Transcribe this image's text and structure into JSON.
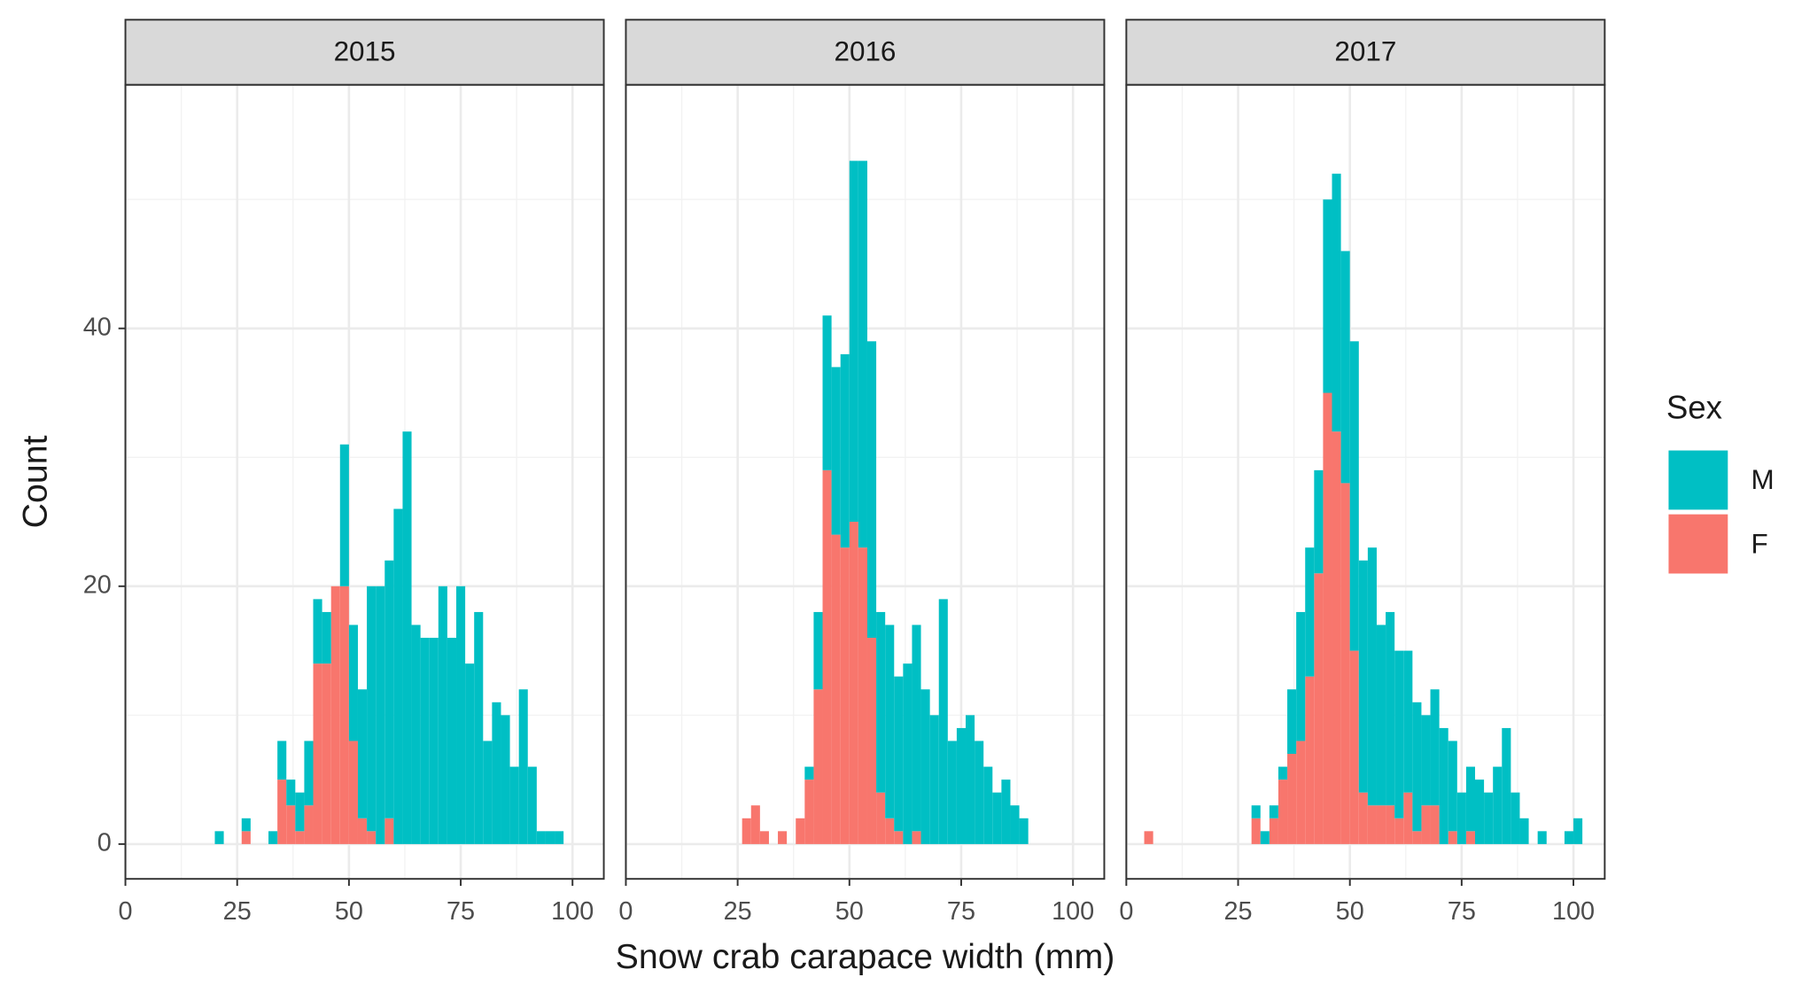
{
  "chart_data": {
    "type": "histogram",
    "x_label": "Snow crab carapace width (mm)",
    "y_label": "Count",
    "legend_title": "Sex",
    "xlim": [
      0,
      107
    ],
    "xticks": [
      0,
      25,
      50,
      75,
      100
    ],
    "ylim": [
      -2.7,
      58.9
    ],
    "yticks": [
      0,
      20,
      40
    ],
    "grid": true,
    "legend_position": "right",
    "panels": [
      {
        "title": "2015",
        "bins": [
          20,
          22,
          24,
          26,
          28,
          30,
          32,
          34,
          36,
          38,
          40,
          42,
          44,
          46,
          48,
          50,
          52,
          54,
          56,
          58,
          60,
          62,
          64,
          66,
          68,
          70,
          72,
          74,
          76,
          78,
          80,
          82,
          84,
          86,
          88,
          90,
          92,
          94,
          96,
          98
        ],
        "series": [
          {
            "name": "M",
            "color": "#00BFC4",
            "values": [
              1,
              0,
              0,
              1,
              0,
              0,
              1,
              3,
              2,
              3,
              5,
              5,
              4,
              0,
              11,
              9,
              10,
              19,
              20,
              20,
              26,
              32,
              17,
              16,
              16,
              20,
              16,
              20,
              14,
              18,
              8,
              11,
              10,
              6,
              12,
              6,
              1,
              1,
              1
            ]
          },
          {
            "name": "F",
            "color": "#F8766D",
            "values": [
              0,
              0,
              0,
              1,
              0,
              0,
              0,
              5,
              3,
              1,
              3,
              14,
              14,
              20,
              20,
              8,
              2,
              1,
              0,
              2,
              0,
              0,
              0,
              0,
              0,
              0,
              0,
              0,
              0,
              0,
              0,
              0,
              0,
              0,
              0,
              0,
              0,
              0,
              0
            ]
          }
        ]
      },
      {
        "title": "2016",
        "bins": [
          26,
          28,
          30,
          32,
          34,
          36,
          38,
          40,
          42,
          44,
          46,
          48,
          50,
          52,
          54,
          56,
          58,
          60,
          62,
          64,
          66,
          68,
          70,
          72,
          74,
          76,
          78,
          80,
          82,
          84,
          86,
          88,
          90
        ],
        "series": [
          {
            "name": "M",
            "color": "#00BFC4",
            "values": [
              0,
              0,
              0,
              0,
              0,
              0,
              0,
              1,
              6,
              12,
              13,
              15,
              28,
              30,
              23,
              14,
              15,
              12,
              14,
              16,
              12,
              10,
              19,
              8,
              9,
              10,
              8,
              6,
              4,
              5,
              3,
              2
            ]
          },
          {
            "name": "F",
            "color": "#F8766D",
            "values": [
              2,
              3,
              1,
              0,
              1,
              0,
              2,
              5,
              12,
              29,
              24,
              23,
              25,
              23,
              16,
              4,
              2,
              1,
              0,
              1,
              0,
              0,
              0,
              0,
              0,
              0,
              0,
              0,
              0,
              0,
              0,
              0
            ]
          }
        ]
      },
      {
        "title": "2017",
        "bins": [
          4,
          6,
          8,
          10,
          12,
          14,
          16,
          18,
          20,
          22,
          24,
          26,
          28,
          30,
          32,
          34,
          36,
          38,
          40,
          42,
          44,
          46,
          48,
          50,
          52,
          54,
          56,
          58,
          60,
          62,
          64,
          66,
          68,
          70,
          72,
          74,
          76,
          78,
          80,
          82,
          84,
          86,
          88,
          90,
          92,
          94,
          96,
          98,
          100,
          102
        ],
        "series": [
          {
            "name": "M",
            "color": "#00BFC4",
            "values": [
              0,
              0,
              0,
              0,
              0,
              0,
              0,
              0,
              0,
              0,
              0,
              0,
              1,
              1,
              1,
              1,
              5,
              10,
              10,
              8,
              15,
              20,
              18,
              24,
              18,
              20,
              14,
              15,
              13,
              11,
              10,
              7,
              9,
              9,
              7,
              4,
              5,
              5,
              4,
              6,
              9,
              4,
              2,
              0,
              1,
              0,
              0,
              1,
              2
            ]
          },
          {
            "name": "F",
            "color": "#F8766D",
            "values": [
              1,
              0,
              0,
              0,
              0,
              0,
              0,
              0,
              0,
              0,
              0,
              0,
              2,
              0,
              2,
              5,
              7,
              8,
              13,
              21,
              35,
              32,
              28,
              15,
              4,
              3,
              3,
              3,
              2,
              4,
              1,
              3,
              3,
              0,
              1,
              0,
              1,
              0,
              0,
              0,
              0,
              0,
              0,
              0,
              0,
              0,
              0,
              0,
              0
            ]
          }
        ]
      }
    ]
  }
}
